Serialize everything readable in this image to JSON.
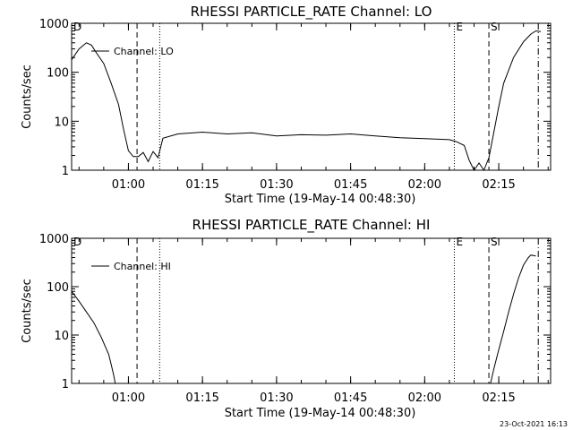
{
  "footer": {
    "timestamp": "23-Oct-2021 16:13"
  },
  "chart_data": [
    {
      "type": "line",
      "title": "RHESSI PARTICLE_RATE Channel: LO",
      "xlabel": "Start Time (19-May-14 00:48:30)",
      "ylabel": "Counts/sec",
      "yscale": "log",
      "ylim": [
        1,
        1000
      ],
      "xlim_minutes": [
        0,
        97
      ],
      "x_ticks": [
        "01:00",
        "01:15",
        "01:30",
        "01:45",
        "02:00",
        "02:15"
      ],
      "y_ticks": [
        "1",
        "10",
        "100",
        "1000"
      ],
      "legend": {
        "label": "Channel: LO",
        "placement": "top-left"
      },
      "markers": [
        {
          "label": "D",
          "time": "00:48:30",
          "style": "none"
        },
        {
          "label": "",
          "time": "01:01:45",
          "style": "dashed"
        },
        {
          "label": "",
          "time": "01:06:20",
          "style": "dotted"
        },
        {
          "label": "E",
          "time": "02:06:00",
          "style": "dotted"
        },
        {
          "label": "S",
          "time": "02:13:00",
          "style": "dashed"
        },
        {
          "label": "",
          "time": "02:23:00",
          "style": "dashdot"
        }
      ],
      "series": [
        {
          "name": "Channel: LO",
          "x": [
            "00:48:30",
            "00:50:00",
            "00:51:30",
            "00:52:30",
            "00:53:30",
            "00:55:00",
            "00:56:30",
            "00:58:00",
            "00:59:00",
            "01:00:00",
            "01:01:00",
            "01:02:00",
            "01:03:00",
            "01:04:00",
            "01:05:00",
            "01:06:00",
            "01:07:00",
            "01:10:00",
            "01:15:00",
            "01:20:00",
            "01:25:00",
            "01:30:00",
            "01:35:00",
            "01:40:00",
            "01:45:00",
            "01:50:00",
            "01:55:00",
            "02:00:00",
            "02:05:00",
            "02:06:30",
            "02:08:00",
            "02:09:00",
            "02:10:00",
            "02:11:00",
            "02:12:00",
            "02:13:00",
            "02:14:00",
            "02:15:00",
            "02:16:00",
            "02:18:00",
            "02:20:00",
            "02:21:30",
            "02:22:30",
            "02:23:30"
          ],
          "y": [
            180,
            300,
            400,
            360,
            250,
            150,
            60,
            22,
            7,
            2.5,
            1.9,
            1.9,
            2.3,
            1.5,
            2.4,
            1.8,
            4.5,
            5.5,
            6,
            5.5,
            5.8,
            5,
            5.3,
            5.2,
            5.5,
            5,
            4.6,
            4.4,
            4.2,
            3.8,
            3.2,
            1.6,
            1,
            1.4,
            1,
            1.8,
            6,
            20,
            60,
            200,
            420,
            600,
            700,
            680
          ]
        }
      ]
    },
    {
      "type": "line",
      "title": "RHESSI PARTICLE_RATE Channel: HI",
      "xlabel": "Start Time (19-May-14 00:48:30)",
      "ylabel": "Counts/sec",
      "yscale": "log",
      "ylim": [
        1,
        1000
      ],
      "xlim_minutes": [
        0,
        97
      ],
      "x_ticks": [
        "01:00",
        "01:15",
        "01:30",
        "01:45",
        "02:00",
        "02:15"
      ],
      "y_ticks": [
        "1",
        "10",
        "100",
        "1000"
      ],
      "legend": {
        "label": "Channel: HI",
        "placement": "top-left"
      },
      "markers": [
        {
          "label": "D",
          "time": "00:48:30",
          "style": "none"
        },
        {
          "label": "",
          "time": "01:01:45",
          "style": "dashed"
        },
        {
          "label": "",
          "time": "01:06:20",
          "style": "dotted"
        },
        {
          "label": "E",
          "time": "02:06:00",
          "style": "dotted"
        },
        {
          "label": "S",
          "time": "02:13:00",
          "style": "dashed"
        },
        {
          "label": "",
          "time": "02:23:00",
          "style": "dashdot"
        }
      ],
      "series": [
        {
          "name": "Channel: HI",
          "x": [
            "00:48:30",
            "00:50:00",
            "00:51:30",
            "00:53:00",
            "00:54:30",
            "00:56:00",
            "00:56:30",
            "00:57:00",
            "00:57:20",
            "02:13:20",
            "02:14:00",
            "02:15:00",
            "02:16:00",
            "02:17:00",
            "02:18:00",
            "02:19:00",
            "02:20:00",
            "02:21:00",
            "02:21:30",
            "02:22:30"
          ],
          "y": [
            80,
            50,
            30,
            18,
            9,
            4,
            2.5,
            1.5,
            1,
            1,
            2,
            5,
            12,
            30,
            70,
            150,
            280,
            400,
            450,
            430
          ]
        }
      ]
    }
  ]
}
